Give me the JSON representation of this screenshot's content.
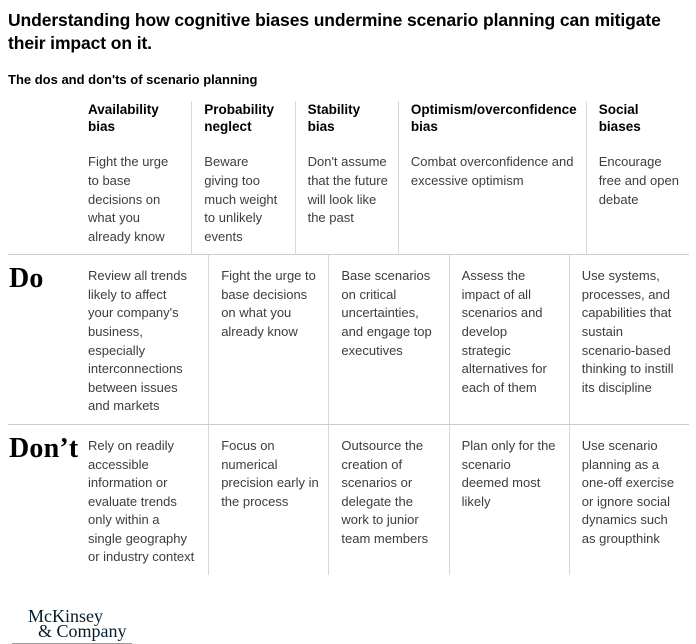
{
  "title": "Understanding how cognitive biases undermine scenario planning can mitigate their impact on it.",
  "subtitle": "The dos and don'ts of scenario planning",
  "columns": [
    {
      "name": "Availability bias",
      "description": "Fight the urge to base decisions on what you already know"
    },
    {
      "name": "Probability neglect",
      "description": "Beware giving too much weight to unlikely events"
    },
    {
      "name": "Stability bias",
      "description": "Don't assume that the future will look like the past"
    },
    {
      "name": "Optimism/overconfidence bias",
      "description": "Combat overconfidence and excessive optimism"
    },
    {
      "name": "Social biases",
      "description": "Encourage free and open debate"
    }
  ],
  "rows": [
    {
      "label": "Do",
      "cells": [
        "Review all trends likely to affect your company's business, especially interconnections between issues and markets",
        "Fight the urge to base decisions on what you already know",
        "Base scenarios on critical uncertainties, and engage top executives",
        "Assess the impact of all scenarios and develop strategic alternatives for each of them",
        "Use systems, processes, and capabilities that sustain scenario-based thinking to instill its discipline"
      ]
    },
    {
      "label": "Don’t",
      "cells": [
        "Rely on readily accessible information or evaluate trends only within a single geography or industry context",
        "Focus on numerical precision early in the process",
        "Outsource the creation of scenarios or delegate the work to junior team members",
        "Plan only for the scenario deemed most likely",
        "Use scenario planning as a one-off exercise or ignore social dynamics such as groupthink"
      ]
    }
  ],
  "footer": {
    "logo_line1": "McKinsey",
    "logo_line2": "& Company"
  },
  "colors": {
    "logo_navy": "#051c2c",
    "rule_gray": "#cccccc",
    "body_text": "#3d3d3d"
  }
}
